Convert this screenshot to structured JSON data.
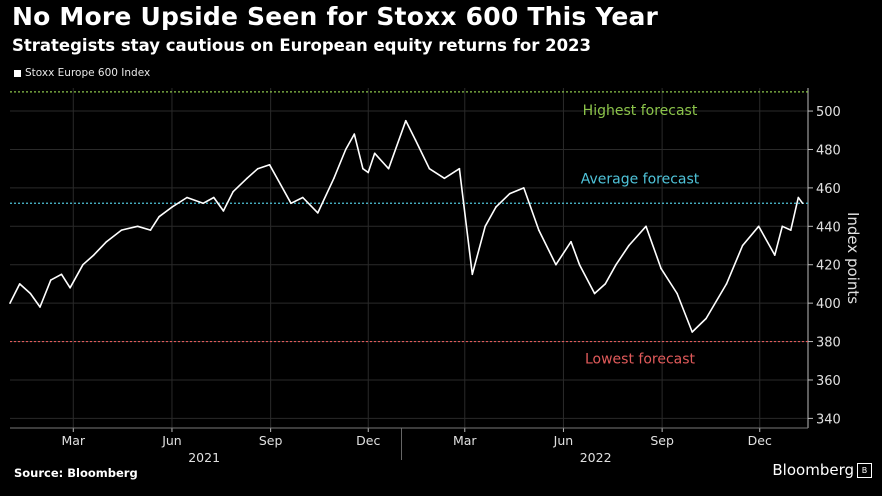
{
  "header": {
    "title": "No More Upside Seen for Stoxx 600 This Year",
    "subtitle": "Strategists stay cautious on European equity returns for 2023"
  },
  "footer": {
    "source": "Source: Bloomberg",
    "brand": "Bloomberg"
  },
  "chart_data": {
    "type": "line",
    "legend": [
      "Stoxx Europe 600 Index"
    ],
    "ylabel": "Index points",
    "ylim": [
      335,
      512
    ],
    "yticks": [
      340,
      360,
      380,
      400,
      420,
      440,
      460,
      480,
      500
    ],
    "xlim": [
      "2021-01-01",
      "2023-01-15"
    ],
    "xticks": [
      {
        "label": "Mar",
        "date": "2021-03-01"
      },
      {
        "label": "Jun",
        "date": "2021-06-01"
      },
      {
        "label": "Sep",
        "date": "2021-09-01"
      },
      {
        "label": "Dec",
        "date": "2021-12-01"
      },
      {
        "label": "Mar",
        "date": "2022-03-01"
      },
      {
        "label": "Jun",
        "date": "2022-06-01"
      },
      {
        "label": "Sep",
        "date": "2022-09-01"
      },
      {
        "label": "Dec",
        "date": "2022-12-01"
      }
    ],
    "year_labels": [
      {
        "label": "2021",
        "date": "2021-07-01"
      },
      {
        "label": "2022",
        "date": "2022-07-01"
      }
    ],
    "grid": true,
    "reference_lines": [
      {
        "name": "Highest forecast",
        "value": 510,
        "color": "#8bc34a"
      },
      {
        "name": "Average forecast",
        "value": 452,
        "color": "#4fc3d9"
      },
      {
        "name": "Lowest forecast",
        "value": 380,
        "color": "#e05a5a"
      }
    ],
    "series": [
      {
        "name": "Stoxx Europe 600 Index",
        "color": "#ffffff",
        "x": [
          "2021-01-01",
          "2021-01-10",
          "2021-01-20",
          "2021-01-29",
          "2021-02-08",
          "2021-02-18",
          "2021-02-26",
          "2021-03-10",
          "2021-03-20",
          "2021-04-01",
          "2021-04-15",
          "2021-04-30",
          "2021-05-12",
          "2021-05-20",
          "2021-06-01",
          "2021-06-15",
          "2021-06-30",
          "2021-07-10",
          "2021-07-19",
          "2021-07-28",
          "2021-08-10",
          "2021-08-20",
          "2021-08-31",
          "2021-09-10",
          "2021-09-20",
          "2021-10-01",
          "2021-10-15",
          "2021-10-30",
          "2021-11-10",
          "2021-11-18",
          "2021-11-26",
          "2021-12-01",
          "2021-12-07",
          "2021-12-20",
          "2022-01-05",
          "2022-01-14",
          "2022-01-27",
          "2022-02-10",
          "2022-02-24",
          "2022-03-08",
          "2022-03-20",
          "2022-03-30",
          "2022-04-12",
          "2022-04-25",
          "2022-05-09",
          "2022-05-25",
          "2022-06-08",
          "2022-06-16",
          "2022-06-30",
          "2022-07-10",
          "2022-07-20",
          "2022-08-01",
          "2022-08-17",
          "2022-08-31",
          "2022-09-15",
          "2022-09-29",
          "2022-10-12",
          "2022-10-31",
          "2022-11-15",
          "2022-11-30",
          "2022-12-15",
          "2022-12-22",
          "2022-12-30",
          "2023-01-06",
          "2023-01-10"
        ],
        "values": [
          400,
          410,
          405,
          398,
          412,
          415,
          408,
          420,
          425,
          432,
          438,
          440,
          438,
          445,
          450,
          455,
          452,
          455,
          448,
          458,
          465,
          470,
          472,
          462,
          452,
          455,
          447,
          465,
          480,
          488,
          470,
          468,
          478,
          470,
          495,
          485,
          470,
          465,
          470,
          415,
          440,
          450,
          457,
          460,
          438,
          420,
          432,
          420,
          405,
          410,
          420,
          430,
          440,
          418,
          405,
          385,
          392,
          410,
          430,
          440,
          425,
          440,
          438,
          455,
          452
        ]
      }
    ]
  }
}
